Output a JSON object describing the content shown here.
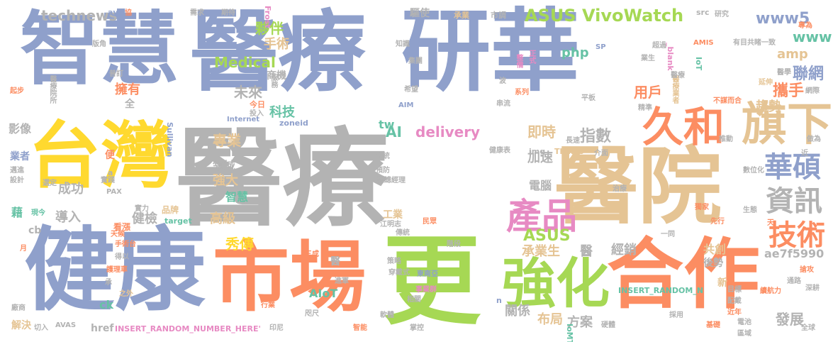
{
  "palette": {
    "blue": "#8fa0cb",
    "gray": "#b3b3b3",
    "orange": "#fc8d62",
    "green": "#a6d854",
    "yellow": "#ffd92f",
    "tan": "#e5c494",
    "teal": "#66c2a5",
    "pink": "#e78ac3"
  },
  "words": {
    "w_yiliao_big": "醫療",
    "w_zhihui": "智慧",
    "w_yiliao_top": "醫療",
    "w_yanhua": "研華",
    "w_taiwan": "台灣",
    "w_jiankang": "健康",
    "w_shichang": "市場",
    "w_geng": "更",
    "w_yiyuan": "醫院",
    "w_hezuo": "合作",
    "w_qiangrhua": "強化",
    "w_jiuhe": "久和",
    "w_qixia": "旗下",
    "w_huashuo": "華碩",
    "w_chanpin": "產品",
    "w_zixun": "資訊",
    "w_jishu": "技術",
    "w_asusvivowatch": "ASUS VivoWatch",
    "w_technews": "technews",
    "w_huoban": "夥伴",
    "w_shoushu": "手術",
    "w_medical": "Medical",
    "w_www5": "www5",
    "w_www": "www",
    "w_amp": "amp",
    "w_php": "php",
    "w_lianwang": "聯網",
    "w_xieshou": "攜手",
    "w_qushi": "趨勢",
    "w_yonghu": "用戶",
    "w_weilai": "未來",
    "w_yongyou": "擁有",
    "w_keji": "科技",
    "w_zhuanye": "專業",
    "w_ai": "AI",
    "w_delivery": "delivery",
    "w_jishi": "即時",
    "w_zhishu": "指數",
    "w_tw": "tw",
    "w_jiasu": "加速",
    "w_diannao": "電腦",
    "w_yingxiang": "影像",
    "w_lingyu": "領域",
    "w_qiangda": "強大",
    "w_chenggong": "成功",
    "w_zhihui_s": "智慧",
    "w_jiejian": "健檢",
    "w_daoru": "導入",
    "w_gaoji": "高級",
    "w_xiuchuan": "秀傳",
    "w_asus": "ASUS",
    "w_chengyesheng": "承業生",
    "w_yi_s": "醫",
    "w_jingxiao": "經銷",
    "w_gongchuang": "共創",
    "w_ae7f5990": "ae7f5990",
    "w_gongye": "工業",
    "w_aiot": "AIoT",
    "w_guanxi": "關係",
    "w_buju": "布局",
    "w_fangan": "方案",
    "w_fazhan": "發展",
    "w_jiejue": "解決",
    "w_href": "href",
    "w_ck": "ck",
    "w_cb": "cb",
    "w_ji": "藉",
    "w_kanzhang": "看漲",
    "w_pinpai": "品牌",
    "w_insert_h": "INSERT_RANDOM_NUMBER_HERE'",
    "w_insert_v": "INSERT_RANDOM_N",
    "w_yiliaoyuansuo": "醫療院所",
    "w_yiliaoyezhe": "醫療業者",
    "w_blank": "_blank'",
    "w_iot": "IoT",
    "w_iomt": "IoMT",
    "w_frost": "Frost",
    "w_sullivan": "Sullivan",
    "w_zoneid": "zoneid",
    "w_target": "target",
    "w_internet": "Internet",
    "w_img": "img",
    "w_things": "Things",
    "w_pax": "PAX",
    "w_avas": "AVAS",
    "w_aim": "AIM",
    "w_amis": "AMIS",
    "w_sp": "SP",
    "w_src": "src",
    "w_avw": "avw",
    "w_a": "a",
    "w_n": "n",
    "w_quyu": "區域",
    "w_yanjiu": "研究",
    "w_chengye": "承業",
    "w_shidiao": "市調",
    "w_qudong": "驅使",
    "w_zhishi": "知識",
    "w_zhengshi": "正式",
    "w_zhenghe": "整備",
    "w_jituan": "集團",
    "w_yongyou2": "擁有",
    "w_fuwu": "服務",
    "w_jinri": "今日",
    "w_touru": "投入",
    "w_xiwang": "希望",
    "w_chuanliu": "串流",
    "w_xilie": "系列",
    "w_pingban": "平板",
    "w_jingzhun": "精準",
    "w_yiliao2": "醫療",
    "w_buqieheheng": "不謀而合",
    "w_yanshen": "延伸",
    "w_yixue": "醫學",
    "w_tuidong": "推動",
    "w_zhangsu": "長速",
    "w_jiankangbiao": "健康表",
    "w_shuweihua": "數位化",
    "w_dujia": "獨家",
    "w_shengtai": "生態",
    "w_yixian": "一同",
    "w_xitong": "系統",
    "w_yufang": "預防",
    "w_fuzongjingli": "副總經理",
    "w_jiangmingzhi": "江明志",
    "w_chuantong": "傳統",
    "w_minying": "民眾",
    "w_jieduan": "階段",
    "w_celue": "策略",
    "w_dongnanya": "東南亞",
    "w_chuandaishi": "穿戴式",
    "w_shiyequn": "事業群",
    "w_xiangguan": "相關",
    "w_ruanjian": "軟體",
    "w_zhangkong": "掌控",
    "w_zhineng": "智能",
    "w_jingong": "進軍",
    "w_zhouchi": "咫尺",
    "w_xingye": "行業",
    "w_yinni": "印尼",
    "w_qierun": "切入",
    "w_changshang": "廠商",
    "w_mubiao": "目標",
    "w_peiyi": "配戴",
    "w_jixian": "基礎",
    "w_yingti": "硬體",
    "w_dianchi": "電池",
    "w_xuhanli": "續航力",
    "w_tonglu": "通路",
    "w_shengji": "深耕",
    "w_quanqiu": "全球",
    "w_jinnian": "近年",
    "w_caiyong": "採用",
    "w_houshi": "後勢",
    "w_xinbu": "新",
    "w_tian": "天",
    "w_bianqian": "變遷",
    "w_xiangnei": "相當",
    "w_wangluo": "網路",
    "w_zuowei": "做為",
    "w_jin": "近",
    "w_qiangsheng": "搶攻",
    "w_jimu": "積極",
    "w_youmu": "有目共睹一致",
    "w_xianxing": "先行",
    "w_shangji": "商機",
    "w_quan": "全",
    "w_bian": "便",
    "w_yezhe": "業者",
    "w_jidai": "期待",
    "w_xuqiu": "需求",
    "w_xie": "協",
    "w_shibai": "實力",
    "w_yixiang": "醫",
    "w_xiaoshou": "銷售",
    "w_huliche": "護理車",
    "w_shoushutai": "手術台",
    "w_tianhou": "天候",
    "w_keyi": "得以",
    "w_zhiwai": "之外",
    "w_cheng": "承",
    "w_yue": "月",
    "w_jinbu": "邁進",
    "w_sheji": "設計",
    "w_xuanding": "選定",
    "w_shijian": "實踐",
    "w_xianxiang": "現今",
    "w_yingli": "盈利",
    "w_zhanxian": "展現",
    "w_xingxiang": "形象",
    "w_qidong": "起步",
    "w_fangcheng": "版角",
    "w_jixu": "持續",
    "w_yidong": "移動",
    "w_sanli": "三成",
    "w_boqu": "波",
    "w_sanyi": "超過",
    "w_yijian": "意見",
    "w_liancheng": "聯成",
    "w_jiandu": "業生",
    "w_huibiao": "圖表",
    "w_jiandan": "簡單",
    "w_zhuanwei": "專為",
    "w_jiuhu": "就緒",
    "w_shaixuan": "篩選",
    "w_jiaoyu": "教育",
    "w_yiyuan2": "醫院",
    "w_bingli": "病歷",
    "w_jiemian": "介面",
    "w_moshi": "模式",
    "w_zhongxin": "中心",
    "w_wangshang": "網際",
    "w_tuijin": "推進",
    "w_danwei": "單位",
    "w_guoji": "國際",
    "w_zhiliao": "治療",
    "w_dingyue": "普訂"
  }
}
